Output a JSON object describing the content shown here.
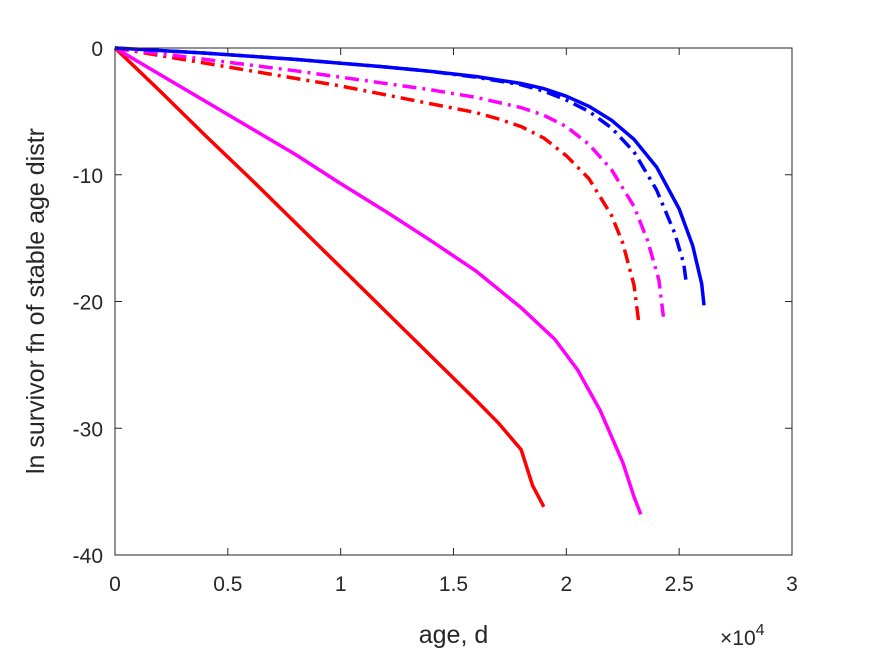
{
  "chart_data": {
    "type": "line",
    "xlabel": "age, d",
    "ylabel": "ln survivor fn of stable age distr",
    "x_multiplier": "×10",
    "x_multiplier_exponent": "4",
    "xlim": [
      0,
      30000
    ],
    "ylim": [
      -40,
      0
    ],
    "x_ticks": [
      0,
      5000,
      10000,
      15000,
      20000,
      25000,
      30000
    ],
    "x_tick_labels": [
      "0",
      "0.5",
      "1",
      "1.5",
      "2",
      "2.5",
      "3"
    ],
    "y_ticks": [
      0,
      -10,
      -20,
      -30,
      -40
    ],
    "y_tick_labels": [
      "0",
      "-10",
      "-20",
      "-30",
      "-40"
    ],
    "grid": false,
    "series": [
      {
        "color": "#ff0000",
        "style": "solid",
        "x": [
          0,
          2000,
          4000,
          6000,
          8000,
          10000,
          12000,
          14000,
          16000,
          17000,
          18000,
          18500,
          19000
        ],
        "y": [
          0,
          -3.4,
          -6.9,
          -10.3,
          -13.8,
          -17.3,
          -20.8,
          -24.3,
          -27.8,
          -29.6,
          -31.7,
          -34.5,
          -36.2
        ]
      },
      {
        "color": "#ff00ff",
        "style": "solid",
        "x": [
          0,
          2000,
          4000,
          6000,
          8000,
          10000,
          12000,
          14000,
          16000,
          18000,
          19500,
          20500,
          21500,
          22500,
          23000,
          23300
        ],
        "y": [
          0,
          -2.1,
          -4.2,
          -6.3,
          -8.4,
          -10.7,
          -12.9,
          -15.2,
          -17.6,
          -20.5,
          -23.0,
          -25.4,
          -28.6,
          -32.7,
          -35.4,
          -36.8
        ]
      },
      {
        "color": "#ff0000",
        "style": "dashdot",
        "x": [
          0,
          2000,
          4000,
          6000,
          8000,
          10000,
          12000,
          14000,
          16000,
          17000,
          18000,
          19000,
          20000,
          21000,
          22000,
          22500,
          23000,
          23200
        ],
        "y": [
          0,
          -0.6,
          -1.2,
          -1.8,
          -2.4,
          -3.0,
          -3.7,
          -4.4,
          -5.1,
          -5.6,
          -6.2,
          -7.1,
          -8.5,
          -10.3,
          -13.2,
          -15.4,
          -18.7,
          -21.5
        ]
      },
      {
        "color": "#ff00ff",
        "style": "dashdot",
        "x": [
          0,
          2000,
          4000,
          6000,
          8000,
          10000,
          12000,
          14000,
          16000,
          18000,
          19000,
          20000,
          21000,
          22000,
          23000,
          23600,
          24100,
          24300
        ],
        "y": [
          0,
          -0.45,
          -0.9,
          -1.35,
          -1.8,
          -2.3,
          -2.8,
          -3.3,
          -3.9,
          -4.7,
          -5.3,
          -6.2,
          -7.6,
          -9.6,
          -12.5,
          -15.2,
          -18.3,
          -21.2
        ]
      },
      {
        "color": "#0000ff",
        "style": "dashdot",
        "x": [
          0,
          2000,
          4000,
          6000,
          8000,
          10000,
          12000,
          14000,
          16000,
          18000,
          19000,
          20000,
          21000,
          22000,
          23000,
          24000,
          24800,
          25200,
          25300
        ],
        "y": [
          0,
          -0.2,
          -0.4,
          -0.65,
          -0.9,
          -1.2,
          -1.5,
          -1.85,
          -2.3,
          -2.9,
          -3.4,
          -4.1,
          -5.0,
          -6.3,
          -8.2,
          -11.2,
          -14.6,
          -17.0,
          -18.3
        ]
      },
      {
        "color": "#0000ff",
        "style": "solid",
        "x": [
          0,
          2000,
          4000,
          6000,
          8000,
          10000,
          12000,
          14000,
          16000,
          18000,
          19000,
          20000,
          21000,
          22000,
          23000,
          24000,
          25000,
          25600,
          26000,
          26100
        ],
        "y": [
          0,
          -0.2,
          -0.4,
          -0.65,
          -0.9,
          -1.2,
          -1.5,
          -1.85,
          -2.25,
          -2.8,
          -3.2,
          -3.8,
          -4.6,
          -5.7,
          -7.2,
          -9.4,
          -12.7,
          -15.6,
          -18.6,
          -20.3
        ]
      }
    ]
  }
}
